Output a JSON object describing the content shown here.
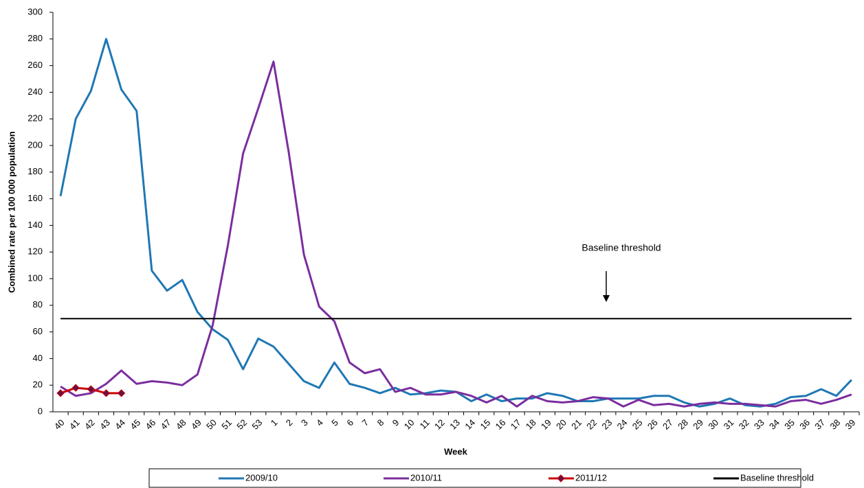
{
  "chart_data": {
    "type": "line",
    "y_label": "Combined rate per 100 000 population",
    "x_label": "Week",
    "annotation": "Baseline threshold",
    "categories": [
      "40",
      "41",
      "42",
      "43",
      "44",
      "45",
      "46",
      "47",
      "48",
      "49",
      "50",
      "51",
      "52",
      "53",
      "1",
      "2",
      "3",
      "4",
      "5",
      "6",
      "7",
      "8",
      "9",
      "10",
      "11",
      "12",
      "13",
      "14",
      "15",
      "16",
      "17",
      "18",
      "19",
      "20",
      "21",
      "22",
      "23",
      "24",
      "25",
      "26",
      "27",
      "28",
      "29",
      "30",
      "31",
      "32",
      "33",
      "34",
      "35",
      "36",
      "37",
      "38",
      "39"
    ],
    "series": [
      {
        "name": "2009/10",
        "color": "#1f77b4",
        "values": [
          162,
          220,
          241,
          280,
          242,
          226,
          106,
          91,
          99,
          75,
          62,
          54,
          32,
          55,
          49,
          36,
          23,
          18,
          37,
          21,
          18,
          14,
          18,
          13,
          14,
          16,
          15,
          8,
          13,
          8,
          10,
          10,
          14,
          12,
          8,
          8,
          10,
          10,
          10,
          12,
          12,
          7,
          4,
          6,
          10,
          5,
          4,
          6,
          11,
          12,
          17,
          12,
          24
        ]
      },
      {
        "name": "2010/11",
        "color": "#7b2d9e",
        "values": [
          19,
          12,
          14,
          21,
          31,
          21,
          23,
          22,
          20,
          28,
          65,
          125,
          194,
          228,
          263,
          195,
          118,
          79,
          68,
          37,
          29,
          32,
          15,
          18,
          13,
          13,
          15,
          12,
          7,
          12,
          4,
          12,
          8,
          7,
          8,
          11,
          10,
          4,
          9,
          5,
          6,
          4,
          6,
          7,
          6,
          6,
          5,
          4,
          8,
          9,
          6,
          9,
          13
        ]
      },
      {
        "name": "2011/12",
        "color": "#cc0000",
        "marker": "diamond",
        "marker_color": "#6a0f4a",
        "values": [
          14,
          18,
          17,
          14,
          14,
          null,
          null,
          null,
          null,
          null,
          null,
          null,
          null,
          null,
          null,
          null,
          null,
          null,
          null,
          null,
          null,
          null,
          null,
          null,
          null,
          null,
          null,
          null,
          null,
          null,
          null,
          null,
          null,
          null,
          null,
          null,
          null,
          null,
          null,
          null,
          null,
          null,
          null,
          null,
          null,
          null,
          null,
          null,
          null,
          null,
          null,
          null,
          null
        ]
      },
      {
        "name": "Baseline threshold",
        "color": "#000000",
        "values": [
          70,
          70,
          70,
          70,
          70,
          70,
          70,
          70,
          70,
          70,
          70,
          70,
          70,
          70,
          70,
          70,
          70,
          70,
          70,
          70,
          70,
          70,
          70,
          70,
          70,
          70,
          70,
          70,
          70,
          70,
          70,
          70,
          70,
          70,
          70,
          70,
          70,
          70,
          70,
          70,
          70,
          70,
          70,
          70,
          70,
          70,
          70,
          70,
          70,
          70,
          70,
          70,
          70
        ]
      }
    ],
    "ylim": [
      0,
      300
    ],
    "yticks": [
      0,
      20,
      40,
      60,
      80,
      100,
      120,
      140,
      160,
      180,
      200,
      220,
      240,
      260,
      280,
      300
    ],
    "grid": false,
    "legend": "bottom"
  }
}
